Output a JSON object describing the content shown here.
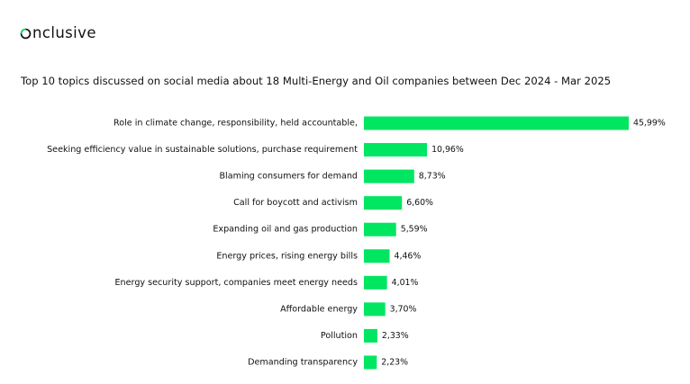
{
  "brand": {
    "name": "nclusive",
    "accent_color": "#00E660"
  },
  "chart_data": {
    "type": "bar",
    "orientation": "horizontal",
    "title": "Top 10 topics discussed on social media about 18 Multi-Energy and Oil companies between Dec 2024 - Mar 2025",
    "categories": [
      "Role in climate change, responsibility, held accountable,",
      "Seeking efficiency value in sustainable solutions, purchase requirement",
      "Blaming consumers for demand",
      "Call for boycott and activism",
      "Expanding oil and gas production",
      "Energy prices, rising energy bills",
      "Energy security support, companies meet energy needs",
      "Affordable energy",
      "Pollution",
      "Demanding transparency"
    ],
    "values": [
      45.99,
      10.96,
      8.73,
      6.6,
      5.59,
      4.46,
      4.01,
      3.7,
      2.33,
      2.23
    ],
    "value_labels": [
      "45,99%",
      "10,96%",
      "8,73%",
      "6,60%",
      "5,59%",
      "4,46%",
      "4,01%",
      "3,70%",
      "2,33%",
      "2,23%"
    ],
    "bar_color": "#00E660",
    "grid": false,
    "legend": "none"
  }
}
